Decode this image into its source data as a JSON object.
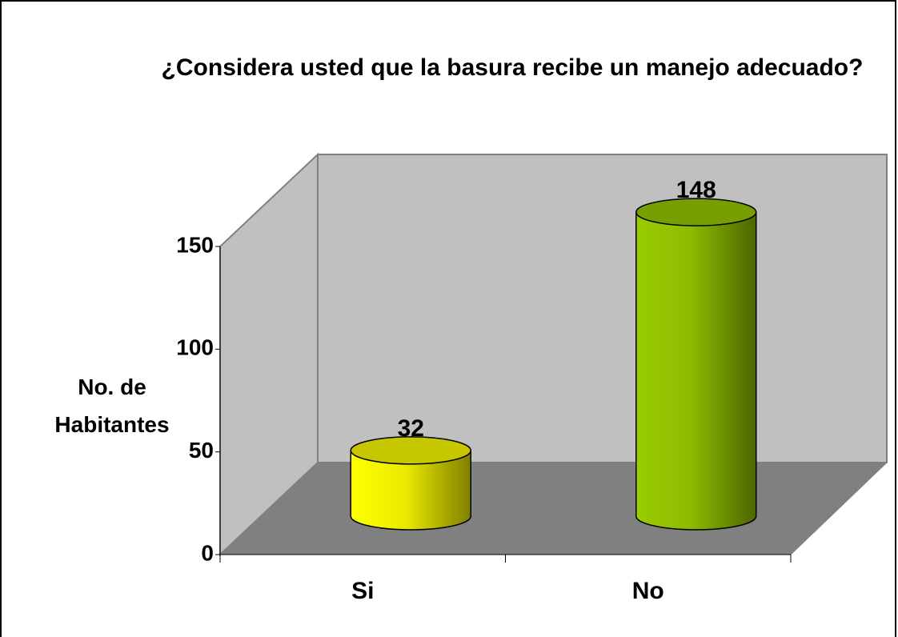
{
  "chart_data": {
    "type": "bar3d-cylinder",
    "title": "¿Considera usted que la basura recibe un manejo adecuado?",
    "y_label": "No. de Habitantes",
    "categories": [
      "Si",
      "No"
    ],
    "values": [
      32,
      148
    ],
    "colors": [
      "#ffff00",
      "#99cc00"
    ],
    "ylim": [
      0,
      150
    ],
    "yticks": [
      0,
      50,
      100,
      150
    ],
    "grid": false
  }
}
